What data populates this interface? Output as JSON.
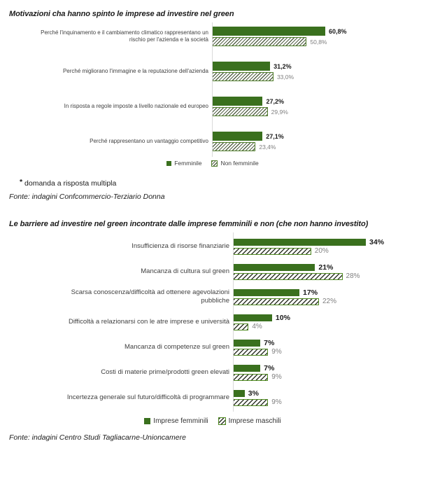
{
  "colors": {
    "solid_green": "#3a701e",
    "hatch_border_green_chart1": "#4e7d28",
    "hatch_border_green_chart2": "#4e8a1f",
    "value_gray": "#7f7f7f",
    "axis_gray": "#d9d9d9"
  },
  "chart_data": [
    {
      "type": "bar",
      "orientation": "horizontal",
      "title": "Motivazioni cha hanno spinto le imprese ad investire nel green",
      "categories": [
        "Perché l'inquinamento e il cambiamento climatico rappresentano un rischio per l'azienda e la società",
        "Perché migliorano l'immagine e la reputazione dell'azienda",
        "In risposta a regole imposte a livello nazionale ed europeo",
        "Perché rappresentano un vantaggio competitivo"
      ],
      "series": [
        {
          "name": "Femminile",
          "style": "solid",
          "values": [
            60.8,
            31.2,
            27.2,
            27.1
          ],
          "labels": [
            "60,8%",
            "31,2%",
            "27,2%",
            "27,1%"
          ]
        },
        {
          "name": "Non femminile",
          "style": "hatched",
          "values": [
            50.8,
            33.0,
            29.9,
            23.4
          ],
          "labels": [
            "50,8%",
            "33,0%",
            "29,9%",
            "23,4%"
          ]
        }
      ],
      "xlim": [
        0,
        65
      ],
      "grid": false,
      "legend_position": "bottom"
    },
    {
      "type": "bar",
      "orientation": "horizontal",
      "title": "Le barriere ad investire nel green incontrate dalle imprese femminili e non (che non hanno investito)",
      "categories": [
        "Insufficienza di risorse finanziarie",
        "Mancanza di cultura sul green",
        "Scarsa conoscenza/difficoltà ad ottenere agevolazioni pubbliche",
        "Difficoltà a relazionarsi con le atre imprese e università",
        "Mancanza di competenze sul green",
        "Costi di materie prime/prodotti green elevati",
        "Incertezza generale sul futuro/difficoltà di programmare"
      ],
      "series": [
        {
          "name": "Imprese femminili",
          "style": "solid",
          "values": [
            34,
            21,
            17,
            10,
            7,
            7,
            3
          ],
          "labels": [
            "34%",
            "21%",
            "17%",
            "10%",
            "7%",
            "7%",
            "3%"
          ]
        },
        {
          "name": "Imprese maschili",
          "style": "hatched",
          "values": [
            20,
            28,
            22,
            4,
            9,
            9,
            9
          ],
          "labels": [
            "20%",
            "28%",
            "22%",
            "4%",
            "9%",
            "9%",
            "9%"
          ]
        }
      ],
      "xlim": [
        0,
        36
      ],
      "grid": false,
      "legend_position": "bottom"
    }
  ],
  "footnote": {
    "marker": "*",
    "text": "domanda a risposta multipla"
  },
  "sources": {
    "chart1": "Fonte: indagini Confcommercio-Terziario Donna",
    "chart2": "Fonte: indagini Centro Studi Tagliacarne-Unioncamere"
  }
}
